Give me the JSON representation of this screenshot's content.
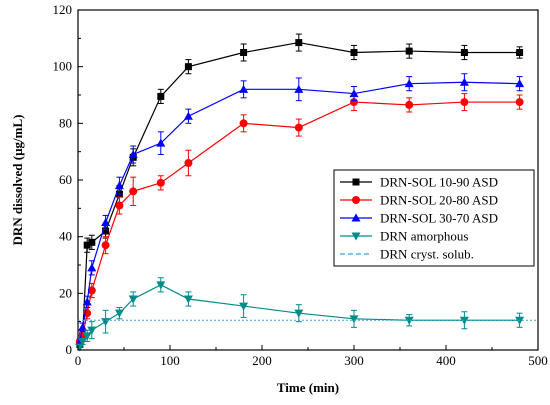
{
  "chart_data": {
    "type": "line",
    "xlabel": "Time (min)",
    "ylabel": "DRN dissolved (µg/mL)",
    "xlim": [
      0,
      500
    ],
    "ylim": [
      0,
      120
    ],
    "xticks": [
      0,
      100,
      200,
      300,
      400,
      500
    ],
    "yticks": [
      0,
      20,
      40,
      60,
      80,
      100,
      120
    ],
    "grid": false,
    "legend_position": "right",
    "series": [
      {
        "name": "DRN-SOL 10-90 ASD",
        "color": "#000000",
        "marker": "square",
        "x": [
          2,
          5,
          10,
          15,
          30,
          45,
          60,
          90,
          120,
          180,
          240,
          300,
          360,
          420,
          480
        ],
        "y": [
          2,
          5,
          37,
          38,
          42,
          55,
          68,
          89.5,
          100,
          105,
          108.5,
          105,
          105.5,
          105,
          105
        ],
        "err": [
          1,
          2,
          2.5,
          2.5,
          2.5,
          3,
          3,
          2.5,
          2.5,
          3,
          3,
          2.5,
          2.5,
          2.5,
          2
        ]
      },
      {
        "name": "DRN-SOL 20-80 ASD",
        "color": "#ff0000",
        "marker": "circle",
        "x": [
          2,
          5,
          10,
          15,
          30,
          45,
          60,
          90,
          120,
          180,
          240,
          300,
          360,
          420,
          480
        ],
        "y": [
          3,
          5,
          13,
          21,
          37,
          51,
          56,
          59,
          66,
          80,
          78.5,
          87.5,
          86.5,
          87.5,
          87.5
        ],
        "err": [
          1,
          1.5,
          2,
          2.5,
          3,
          3,
          5,
          2.5,
          4.5,
          3,
          3,
          3,
          2.5,
          3,
          2.5
        ]
      },
      {
        "name": "DRN-SOL 30-70 ASD",
        "color": "#0000ff",
        "marker": "triangle-up",
        "x": [
          2,
          5,
          10,
          15,
          30,
          45,
          60,
          90,
          120,
          180,
          240,
          300,
          360,
          420,
          480
        ],
        "y": [
          3,
          8,
          17,
          29,
          45,
          58,
          69,
          73,
          82.5,
          92,
          92,
          90.5,
          94,
          94.5,
          94
        ],
        "err": [
          1,
          1.5,
          2,
          2.5,
          2.5,
          3,
          3,
          4,
          2.5,
          3,
          4,
          2.5,
          2.5,
          3,
          2.5
        ]
      },
      {
        "name": "DRN amorphous",
        "color": "#008b8b",
        "marker": "triangle-down",
        "x": [
          2,
          5,
          10,
          15,
          30,
          45,
          60,
          90,
          120,
          180,
          240,
          300,
          360,
          420,
          480
        ],
        "y": [
          1,
          3,
          5,
          7,
          10,
          13,
          18,
          23,
          18,
          15.5,
          13,
          11,
          10.5,
          10.5,
          10.5
        ],
        "err": [
          1,
          1,
          2,
          3,
          4,
          2,
          2.5,
          2.5,
          2.5,
          4,
          3,
          3,
          2,
          3,
          2.5
        ]
      },
      {
        "name": "DRN cryst. solub.",
        "color": "#33aadd",
        "marker": "none",
        "dashed": true,
        "x": [
          0,
          500
        ],
        "y": [
          10.5,
          10.5
        ]
      }
    ]
  }
}
